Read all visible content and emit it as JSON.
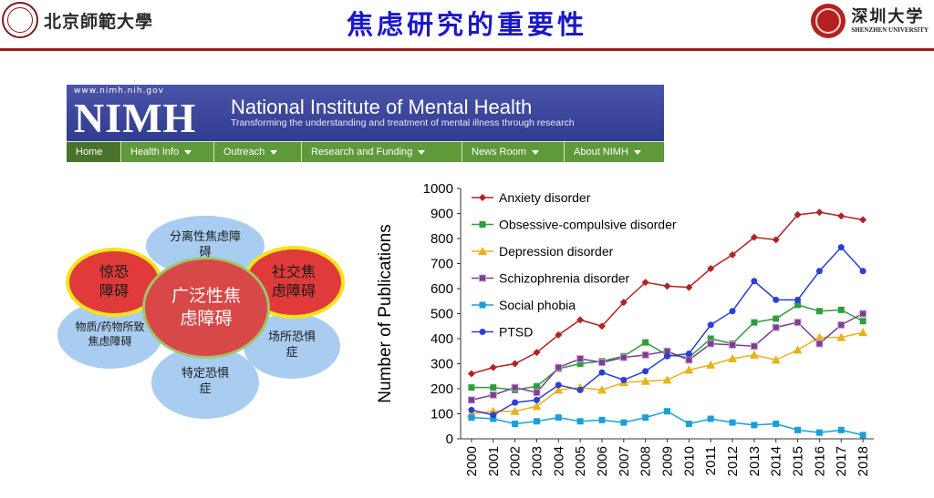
{
  "header": {
    "left_university": "北京師範大學",
    "title": "焦虑研究的重要性",
    "right_university_cn": "深圳大学",
    "right_university_en": "SHENZHEN UNIVERSITY"
  },
  "nimh": {
    "url": "www.nimh.nih.gov",
    "logo": "NIMH",
    "name": "National Institute of Mental Health",
    "tagline": "Transforming the understanding and treatment of mental illness through research",
    "nav": [
      "Home",
      "Health Info",
      "Outreach",
      "Research and Funding",
      "News Room",
      "About NIMH"
    ]
  },
  "diagram": {
    "center": "广泛性焦虑障碍",
    "top": "分离性焦虑障碍",
    "left_red": "惊恐障碍",
    "right_red": "社交焦虑障碍",
    "left": "物质/药物所致焦虑障碍",
    "right": "场所恐惧症",
    "bottom": "特定恐惧症"
  },
  "chart_data": {
    "type": "line",
    "ylabel": "Number of Publications",
    "xlabel": "",
    "ylim": [
      0,
      1000
    ],
    "yticks": [
      0,
      100,
      200,
      300,
      400,
      500,
      600,
      700,
      800,
      900,
      1000
    ],
    "x": [
      "2000",
      "2001",
      "2002",
      "2003",
      "2004",
      "2005",
      "2006",
      "2007",
      "2008",
      "2009",
      "2010",
      "2011",
      "2012",
      "2013",
      "2014",
      "2015",
      "2016",
      "2017",
      "2018"
    ],
    "legend": "top-left",
    "series": [
      {
        "name": "Anxiety disorder",
        "color": "#b22222",
        "marker": "diamond",
        "values": [
          260,
          285,
          300,
          345,
          415,
          475,
          450,
          545,
          625,
          610,
          605,
          680,
          735,
          805,
          795,
          895,
          905,
          890,
          875
        ]
      },
      {
        "name": "Obsessive-compulsive disorder",
        "color": "#2e9e3e",
        "marker": "square",
        "values": [
          205,
          205,
          195,
          210,
          280,
          300,
          310,
          330,
          385,
          335,
          325,
          400,
          380,
          465,
          480,
          535,
          510,
          515,
          470
        ]
      },
      {
        "name": "Depression disorder",
        "color": "#e6b31a",
        "marker": "triangle",
        "values": [
          100,
          110,
          110,
          130,
          195,
          205,
          195,
          225,
          230,
          235,
          275,
          295,
          320,
          335,
          315,
          355,
          405,
          405,
          425
        ]
      },
      {
        "name": "Schizophrenia disorder",
        "color": "#7b3f8f",
        "marker": "square",
        "values": [
          155,
          175,
          205,
          185,
          285,
          320,
          305,
          325,
          335,
          350,
          315,
          380,
          375,
          370,
          445,
          465,
          380,
          455,
          500
        ]
      },
      {
        "name": "Social phobia",
        "color": "#1aa0d8",
        "marker": "square",
        "values": [
          85,
          80,
          60,
          70,
          85,
          70,
          75,
          65,
          85,
          110,
          60,
          80,
          65,
          55,
          60,
          35,
          25,
          35,
          15
        ]
      },
      {
        "name": "PTSD",
        "color": "#2b3fd6",
        "marker": "circle",
        "values": [
          115,
          95,
          145,
          155,
          215,
          195,
          265,
          235,
          270,
          330,
          340,
          455,
          510,
          630,
          555,
          555,
          670,
          765,
          670
        ]
      }
    ]
  }
}
